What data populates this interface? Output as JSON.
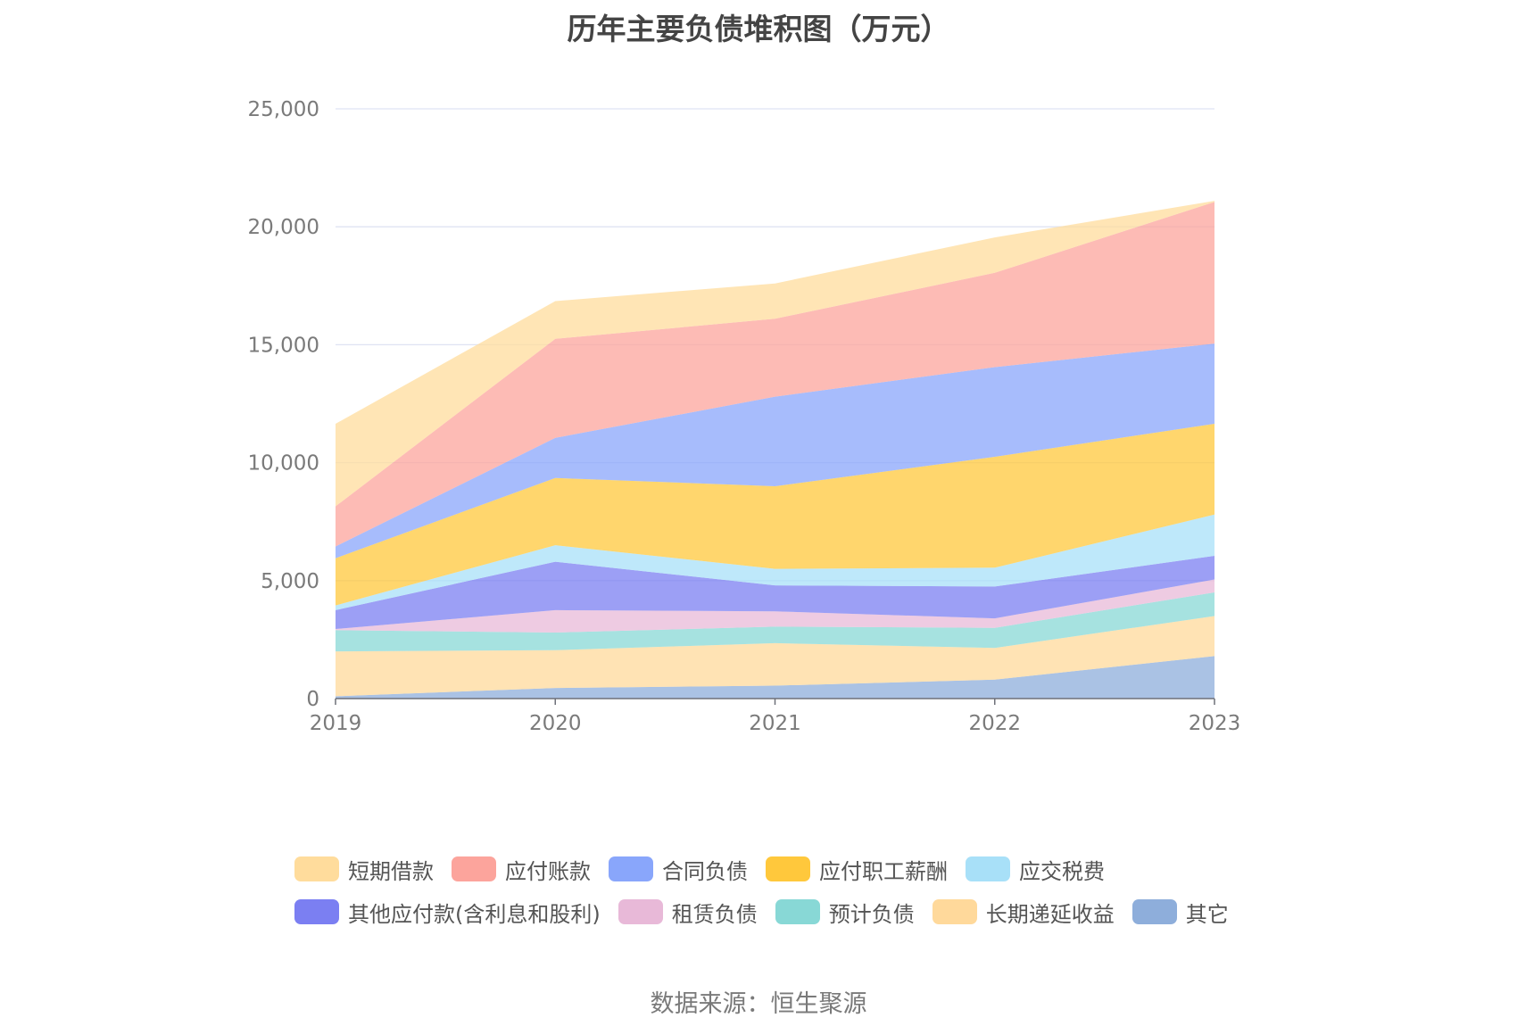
{
  "title": "历年主要负债堆积图（万元）",
  "source": "数据来源：恒生聚源",
  "chart_data": {
    "type": "area",
    "stacked": true,
    "title": "历年主要负债堆积图（万元）",
    "xlabel": "",
    "ylabel": "",
    "categories": [
      "2019",
      "2020",
      "2021",
      "2022",
      "2023"
    ],
    "ylim": [
      0,
      25000
    ],
    "yticks": [
      0,
      5000,
      10000,
      15000,
      20000,
      25000
    ],
    "ytick_labels": [
      "0",
      "5,000",
      "10,000",
      "15,000",
      "20,000",
      "25,000"
    ],
    "grid": true,
    "legend_position": "bottom",
    "series": [
      {
        "name": "其它",
        "color": "#8eaedb",
        "values": [
          100,
          450,
          550,
          800,
          1800
        ]
      },
      {
        "name": "长期递延收益",
        "color": "#ffd99b",
        "values": [
          1900,
          1600,
          1800,
          1350,
          1700
        ]
      },
      {
        "name": "预计负债",
        "color": "#88d8d6",
        "values": [
          900,
          750,
          700,
          850,
          1000
        ]
      },
      {
        "name": "租赁负债",
        "color": "#e8b9d8",
        "values": [
          50,
          950,
          650,
          400,
          550
        ]
      },
      {
        "name": "其他应付款(含利息和股利)",
        "color": "#7b7ff2",
        "values": [
          800,
          2050,
          1100,
          1350,
          1000
        ]
      },
      {
        "name": "应交税费",
        "color": "#a8e0f8",
        "values": [
          200,
          700,
          700,
          800,
          1750
        ]
      },
      {
        "name": "应付职工薪酬",
        "color": "#ffc83c",
        "values": [
          2000,
          2850,
          3500,
          4700,
          3850
        ]
      },
      {
        "name": "合同负债",
        "color": "#89a6fb",
        "values": [
          500,
          1700,
          3800,
          3800,
          3400
        ]
      },
      {
        "name": "应付账款",
        "color": "#fca49c",
        "values": [
          1700,
          4200,
          3300,
          4000,
          6000
        ]
      },
      {
        "name": "短期借款",
        "color": "#ffdc9c",
        "values": [
          3500,
          1600,
          1500,
          1500,
          50
        ]
      }
    ]
  },
  "legend": [
    [
      {
        "name": "短期借款",
        "color": "#ffdc9c"
      },
      {
        "name": "应付账款",
        "color": "#fca49c"
      },
      {
        "name": "合同负债",
        "color": "#89a6fb"
      },
      {
        "name": "应付职工薪酬",
        "color": "#ffc83c"
      },
      {
        "name": "应交税费",
        "color": "#a8e0f8"
      }
    ],
    [
      {
        "name": "其他应付款(含利息和股利)",
        "color": "#7b7ff2"
      },
      {
        "name": "租赁负债",
        "color": "#e8b9d8"
      },
      {
        "name": "预计负债",
        "color": "#88d8d6"
      },
      {
        "name": "长期递延收益",
        "color": "#ffd99b"
      },
      {
        "name": "其它",
        "color": "#8eaedb"
      }
    ]
  ]
}
